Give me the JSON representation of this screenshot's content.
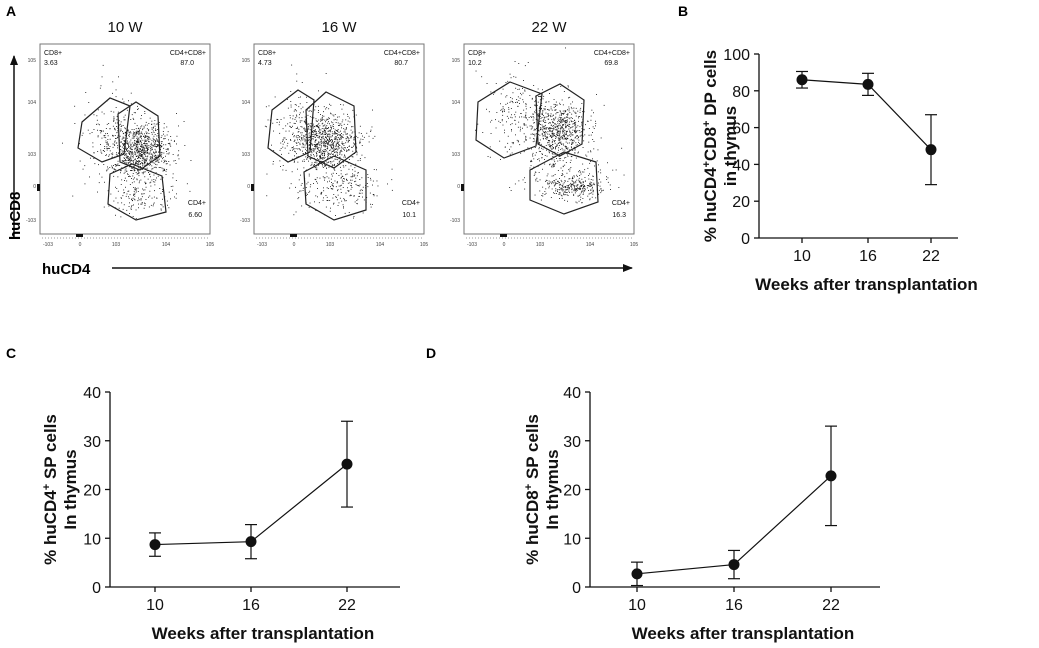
{
  "panels": {
    "A": {
      "label": "A",
      "x_axis_label": "huCD4",
      "y_axis_label": "huCD8",
      "y_tick_labels": [
        "10^5",
        "10^4",
        "10^3",
        "0",
        "-10^3"
      ],
      "x_tick_labels": [
        "-10^3",
        "0",
        "10^3",
        "10^4",
        "10^5"
      ],
      "plots": [
        {
          "title": "10 W",
          "cd8_label": "CD8+",
          "cd8_value": "3.63",
          "dp_label": "CD4+CD8+",
          "dp_value": "87.0",
          "cd4_label": "CD4+",
          "cd4_value": "6.60"
        },
        {
          "title": "16 W",
          "cd8_label": "CD8+",
          "cd8_value": "4.73",
          "dp_label": "CD4+CD8+",
          "dp_value": "80.7",
          "cd4_label": "CD4+",
          "cd4_value": "10.1"
        },
        {
          "title": "22 W",
          "cd8_label": "CD8+",
          "cd8_value": "10.2",
          "dp_label": "CD4+CD8+",
          "dp_value": "69.8",
          "cd4_label": "CD4+",
          "cd4_value": "16.3"
        }
      ]
    },
    "B": {
      "label": "B"
    },
    "C": {
      "label": "C"
    },
    "D": {
      "label": "D"
    }
  },
  "chart_data": [
    {
      "panel": "B",
      "type": "line",
      "x": [
        10,
        16,
        22
      ],
      "values": [
        86,
        83.5,
        48
      ],
      "errors": [
        4.5,
        6,
        19
      ],
      "xlabel": "Weeks after transplantation",
      "ylabel_line1": "% huCD4+CD8+ DP cells",
      "ylabel_line2": "in thymus",
      "ylim": [
        0,
        100
      ],
      "yticks": [
        0,
        20,
        40,
        60,
        80,
        100
      ],
      "xticks": [
        "10",
        "16",
        "22"
      ]
    },
    {
      "panel": "C",
      "type": "line",
      "x": [
        10,
        16,
        22
      ],
      "values": [
        8.7,
        9.3,
        25.2
      ],
      "errors": [
        2.4,
        3.5,
        8.8
      ],
      "xlabel": "Weeks after transplantation",
      "ylabel_line1": "% huCD4+ SP cells",
      "ylabel_line2": "In thymus",
      "ylim": [
        0,
        40
      ],
      "yticks": [
        0,
        10,
        20,
        30,
        40
      ],
      "xticks": [
        "10",
        "16",
        "22"
      ]
    },
    {
      "panel": "D",
      "type": "line",
      "x": [
        10,
        16,
        22
      ],
      "values": [
        2.7,
        4.6,
        22.8
      ],
      "errors": [
        2.4,
        2.9,
        10.2
      ],
      "xlabel": "Weeks after transplantation",
      "ylabel_line1": "% huCD8+ SP cells",
      "ylabel_line2": "In thymus",
      "ylim": [
        0,
        40
      ],
      "yticks": [
        0,
        10,
        20,
        30,
        40
      ],
      "xticks": [
        "10",
        "16",
        "22"
      ]
    }
  ]
}
